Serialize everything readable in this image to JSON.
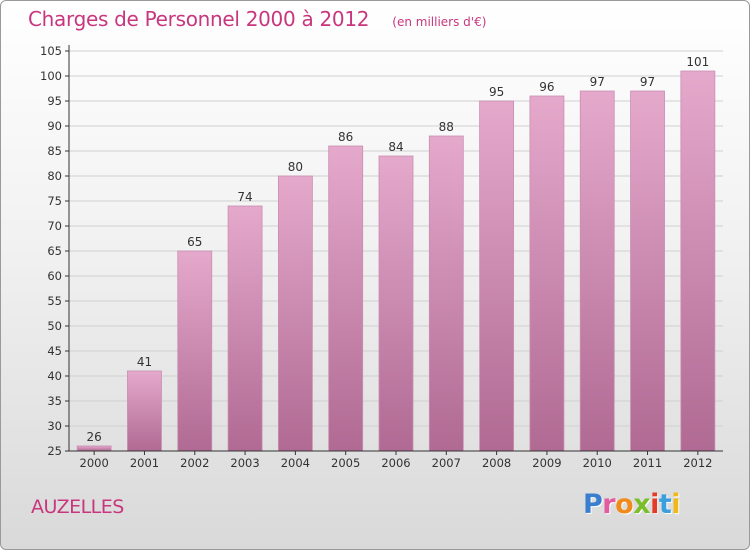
{
  "header": {
    "title": "Charges de Personnel 2000 à 2012",
    "subtitle": "(en milliers d'€)"
  },
  "footer": {
    "commune": "AUZELLES",
    "logo": {
      "text": "Proxiti",
      "letter_colors": [
        "#3a7fcf",
        "#e35a9e",
        "#f08a1a",
        "#7abf2a",
        "#e33a2a",
        "#3a9fdf",
        "#f0b81a"
      ]
    }
  },
  "chart_data": {
    "type": "bar",
    "categories": [
      "2000",
      "2001",
      "2002",
      "2003",
      "2004",
      "2005",
      "2006",
      "2007",
      "2008",
      "2009",
      "2010",
      "2011",
      "2012"
    ],
    "values": [
      26,
      41,
      65,
      74,
      80,
      86,
      84,
      88,
      95,
      96,
      97,
      97,
      101
    ],
    "data_labels": [
      "26",
      "41",
      "65",
      "74",
      "80",
      "86",
      "84",
      "88",
      "95",
      "96",
      "97",
      "97",
      "101"
    ],
    "title": "Charges de Personnel 2000 à 2012",
    "subtitle": "(en milliers d'€)",
    "xlabel": "",
    "ylabel": "",
    "ylim": [
      25,
      105
    ],
    "yticks": [
      25,
      30,
      35,
      40,
      45,
      50,
      55,
      60,
      65,
      70,
      75,
      80,
      85,
      90,
      95,
      100,
      105
    ],
    "grid": true,
    "legend": "none",
    "colors": {
      "bar_top": "#e5a9cc",
      "bar_bottom": "#b06a93",
      "title": "#c8377e",
      "grid": "#d0d0d0",
      "axis": "#333333"
    }
  }
}
